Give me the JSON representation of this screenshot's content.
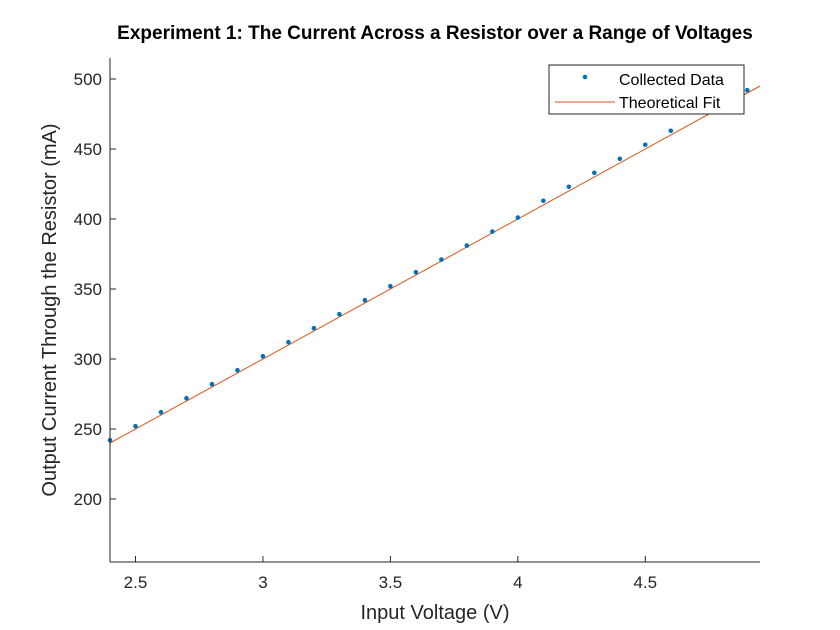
{
  "chart_data": {
    "type": "scatter",
    "title": "Experiment 1: The Current Across a Resistor over a Range of Voltages",
    "xlabel": "Input Voltage (V)",
    "ylabel": "Output Current Through the Resistor (mA)",
    "xlim": [
      2.4,
      4.95
    ],
    "ylim": [
      155,
      515
    ],
    "xticks": [
      "2.5",
      "3",
      "3.5",
      "4",
      "4.5"
    ],
    "yticks": [
      "200",
      "250",
      "300",
      "350",
      "400",
      "450",
      "500"
    ],
    "grid": false,
    "legend_position": "top-right",
    "colors": {
      "data": "#0072BD",
      "fit": "#D95319",
      "axis": "#262626"
    },
    "series": [
      {
        "name": "Collected Data",
        "kind": "scatter",
        "x": [
          2.4,
          2.5,
          2.6,
          2.7,
          2.8,
          2.9,
          3.0,
          3.1,
          3.2,
          3.3,
          3.4,
          3.5,
          3.6,
          3.7,
          3.8,
          3.9,
          4.0,
          4.1,
          4.2,
          4.3,
          4.4,
          4.5,
          4.6,
          4.9
        ],
        "y": [
          242,
          252,
          262,
          272,
          282,
          292,
          302,
          312,
          322,
          332,
          342,
          352,
          362,
          371,
          381,
          391,
          401,
          413,
          423,
          433,
          443,
          453,
          463,
          492
        ]
      },
      {
        "name": "Theoretical Fit",
        "kind": "line",
        "x": [
          2.4,
          4.95
        ],
        "y": [
          240,
          495
        ]
      }
    ]
  }
}
